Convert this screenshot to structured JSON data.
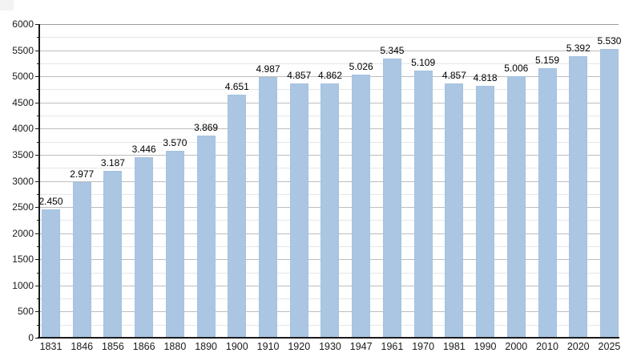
{
  "page": {
    "background_color": "#ffffff",
    "corner_artifact_color": "#f3f3f3"
  },
  "chart_data": {
    "type": "bar",
    "title": "",
    "xlabel": "",
    "ylabel": "",
    "categories": [
      "1831",
      "1846",
      "1856",
      "1866",
      "1880",
      "1890",
      "1900",
      "1910",
      "1920",
      "1930",
      "1947",
      "1961",
      "1970",
      "1981",
      "1990",
      "2000",
      "2010",
      "2020",
      "2025"
    ],
    "values": [
      2450,
      2977,
      3187,
      3446,
      3570,
      3869,
      4651,
      4987,
      4857,
      4862,
      5026,
      5345,
      5109,
      4857,
      4818,
      5006,
      5159,
      5392,
      5530
    ],
    "value_labels": [
      "2.450",
      "2.977",
      "3.187",
      "3.446",
      "3.570",
      "3.869",
      "4.651",
      "4.987",
      "4.857",
      "4.862",
      "5.026",
      "5.345",
      "5.109",
      "4.857",
      "4.818",
      "5.006",
      "5.159",
      "5.392",
      "5.530"
    ],
    "ylim": [
      0,
      6000
    ],
    "y_major_step": 500,
    "y_minor_step": 250,
    "y_tick_labels": [
      "0",
      "500",
      "1000",
      "1500",
      "2000",
      "2500",
      "3000",
      "3500",
      "4000",
      "4500",
      "5000",
      "5500",
      "6000"
    ],
    "grid": "on",
    "legend_position": "none",
    "colors": {
      "bar_fill": "#aac6e3",
      "bar_edge": "#9db9d8",
      "grid_major": "#bdbdbd",
      "grid_minor": "#e6e6e6",
      "grid_top": "#9c9c9c",
      "axis": "#1a1a1a",
      "label_text": "#000000",
      "tick_text": "#1a1a1a"
    }
  }
}
